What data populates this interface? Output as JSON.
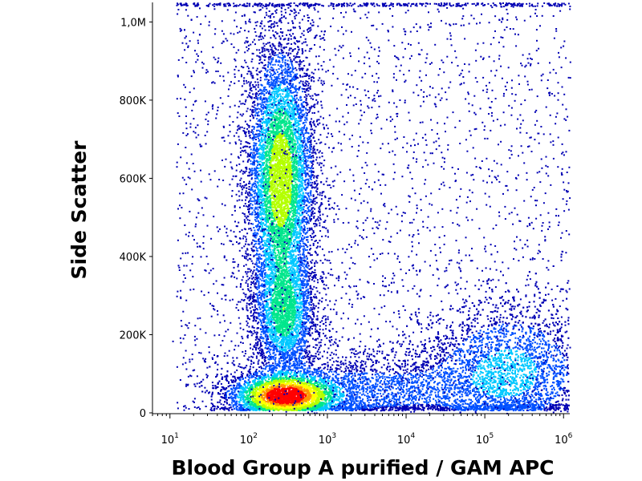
{
  "chart_data": {
    "type": "scatter",
    "subtype": "flow-cytometry density dot plot",
    "xlabel": "Blood Group A purified / GAM APC",
    "ylabel": "Side Scatter",
    "x_scale": "log",
    "xlim": [
      6,
      1200000
    ],
    "ylim": [
      0,
      1050000
    ],
    "x_ticks": [
      {
        "base": "10",
        "exp": "1",
        "value": 10
      },
      {
        "base": "10",
        "exp": "2",
        "value": 100
      },
      {
        "base": "10",
        "exp": "3",
        "value": 1000
      },
      {
        "base": "10",
        "exp": "4",
        "value": 10000
      },
      {
        "base": "10",
        "exp": "5",
        "value": 100000
      },
      {
        "base": "10",
        "exp": "6",
        "value": 1000000
      }
    ],
    "y_ticks": [
      {
        "label": "0",
        "value": 0
      },
      {
        "label": "200K",
        "value": 200000
      },
      {
        "label": "400K",
        "value": 400000
      },
      {
        "label": "600K",
        "value": 600000
      },
      {
        "label": "800K",
        "value": 800000
      },
      {
        "label": "1,0M",
        "value": 1000000
      }
    ],
    "populations": [
      {
        "x_center": 250,
        "y_center": 600000,
        "density": "high"
      },
      {
        "x_center": 280,
        "y_center": 260000,
        "density": "medium"
      },
      {
        "x_center": 300,
        "y_center": 50000,
        "density": "very high"
      },
      {
        "x_center": 200000,
        "y_center": 100000,
        "density": "medium"
      }
    ],
    "colormap": [
      "#0000b4",
      "#0050ff",
      "#00c8ff",
      "#00e68c",
      "#b4ff00",
      "#ffff00",
      "#ff9600",
      "#ff0000"
    ],
    "grid": false,
    "legend": "none"
  }
}
